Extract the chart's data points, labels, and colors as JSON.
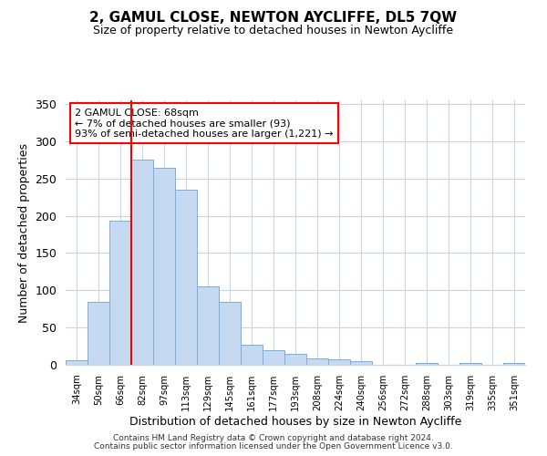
{
  "title": "2, GAMUL CLOSE, NEWTON AYCLIFFE, DL5 7QW",
  "subtitle": "Size of property relative to detached houses in Newton Aycliffe",
  "xlabel": "Distribution of detached houses by size in Newton Aycliffe",
  "ylabel": "Number of detached properties",
  "bin_labels": [
    "34sqm",
    "50sqm",
    "66sqm",
    "82sqm",
    "97sqm",
    "113sqm",
    "129sqm",
    "145sqm",
    "161sqm",
    "177sqm",
    "193sqm",
    "208sqm",
    "224sqm",
    "240sqm",
    "256sqm",
    "272sqm",
    "288sqm",
    "303sqm",
    "319sqm",
    "335sqm",
    "351sqm"
  ],
  "bar_heights": [
    6,
    84,
    193,
    275,
    265,
    235,
    105,
    84,
    27,
    20,
    15,
    8,
    7,
    5,
    0,
    0,
    3,
    0,
    3,
    0,
    3
  ],
  "bar_color": "#c5d9f0",
  "bar_edge_color": "#7aadde",
  "vline_x": 2.5,
  "vline_color": "red",
  "annotation_text": "2 GAMUL CLOSE: 68sqm\n← 7% of detached houses are smaller (93)\n93% of semi-detached houses are larger (1,221) →",
  "ylim": [
    0,
    355
  ],
  "yticks": [
    0,
    50,
    100,
    150,
    200,
    250,
    300,
    350
  ],
  "footer1": "Contains HM Land Registry data © Crown copyright and database right 2024.",
  "footer2": "Contains public sector information licensed under the Open Government Licence v3.0.",
  "background_color": "#ffffff",
  "grid_color": "#c8d4e0"
}
